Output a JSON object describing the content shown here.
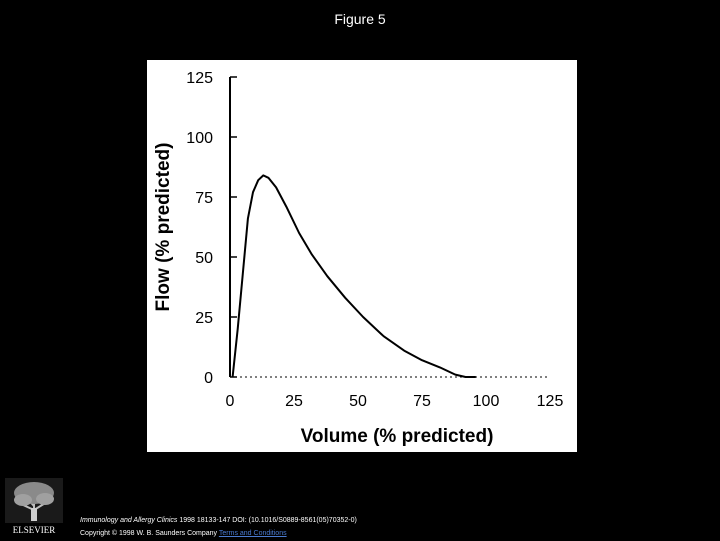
{
  "header": {
    "title": "Figure 5"
  },
  "chart_data": {
    "type": "line",
    "title": "",
    "xlabel": "Volume (% predicted)",
    "ylabel": "Flow (% predicted)",
    "xlim": [
      0,
      125
    ],
    "ylim": [
      0,
      125
    ],
    "xticks": [
      0,
      25,
      50,
      75,
      100,
      125
    ],
    "yticks": [
      0,
      25,
      50,
      75,
      100,
      125
    ],
    "grid": false,
    "legend": "none",
    "line_color": "#000000",
    "series": [
      {
        "x": [
          1,
          3,
          5,
          7,
          9,
          11,
          13,
          15,
          18,
          22,
          27,
          32,
          38,
          45,
          52,
          60,
          68,
          75,
          82,
          88,
          92,
          96
        ],
        "y": [
          0,
          20,
          43,
          66,
          77,
          82,
          84,
          83,
          79,
          71,
          60,
          51,
          42,
          33,
          25,
          17,
          11,
          7,
          4,
          1,
          0,
          0
        ]
      }
    ]
  },
  "footer": {
    "journal": "Immunology and Allergy Clinics",
    "citation": "1998 18133-147 DOI: (10.1016/S0889-8561(05)70352-0)",
    "copyright": "Copyright © 1998 W. B. Saunders Company",
    "link_label": "Terms and Conditions"
  },
  "logo": {
    "text": "ELSEVIER",
    "icon": "elsevier-tree-icon"
  }
}
